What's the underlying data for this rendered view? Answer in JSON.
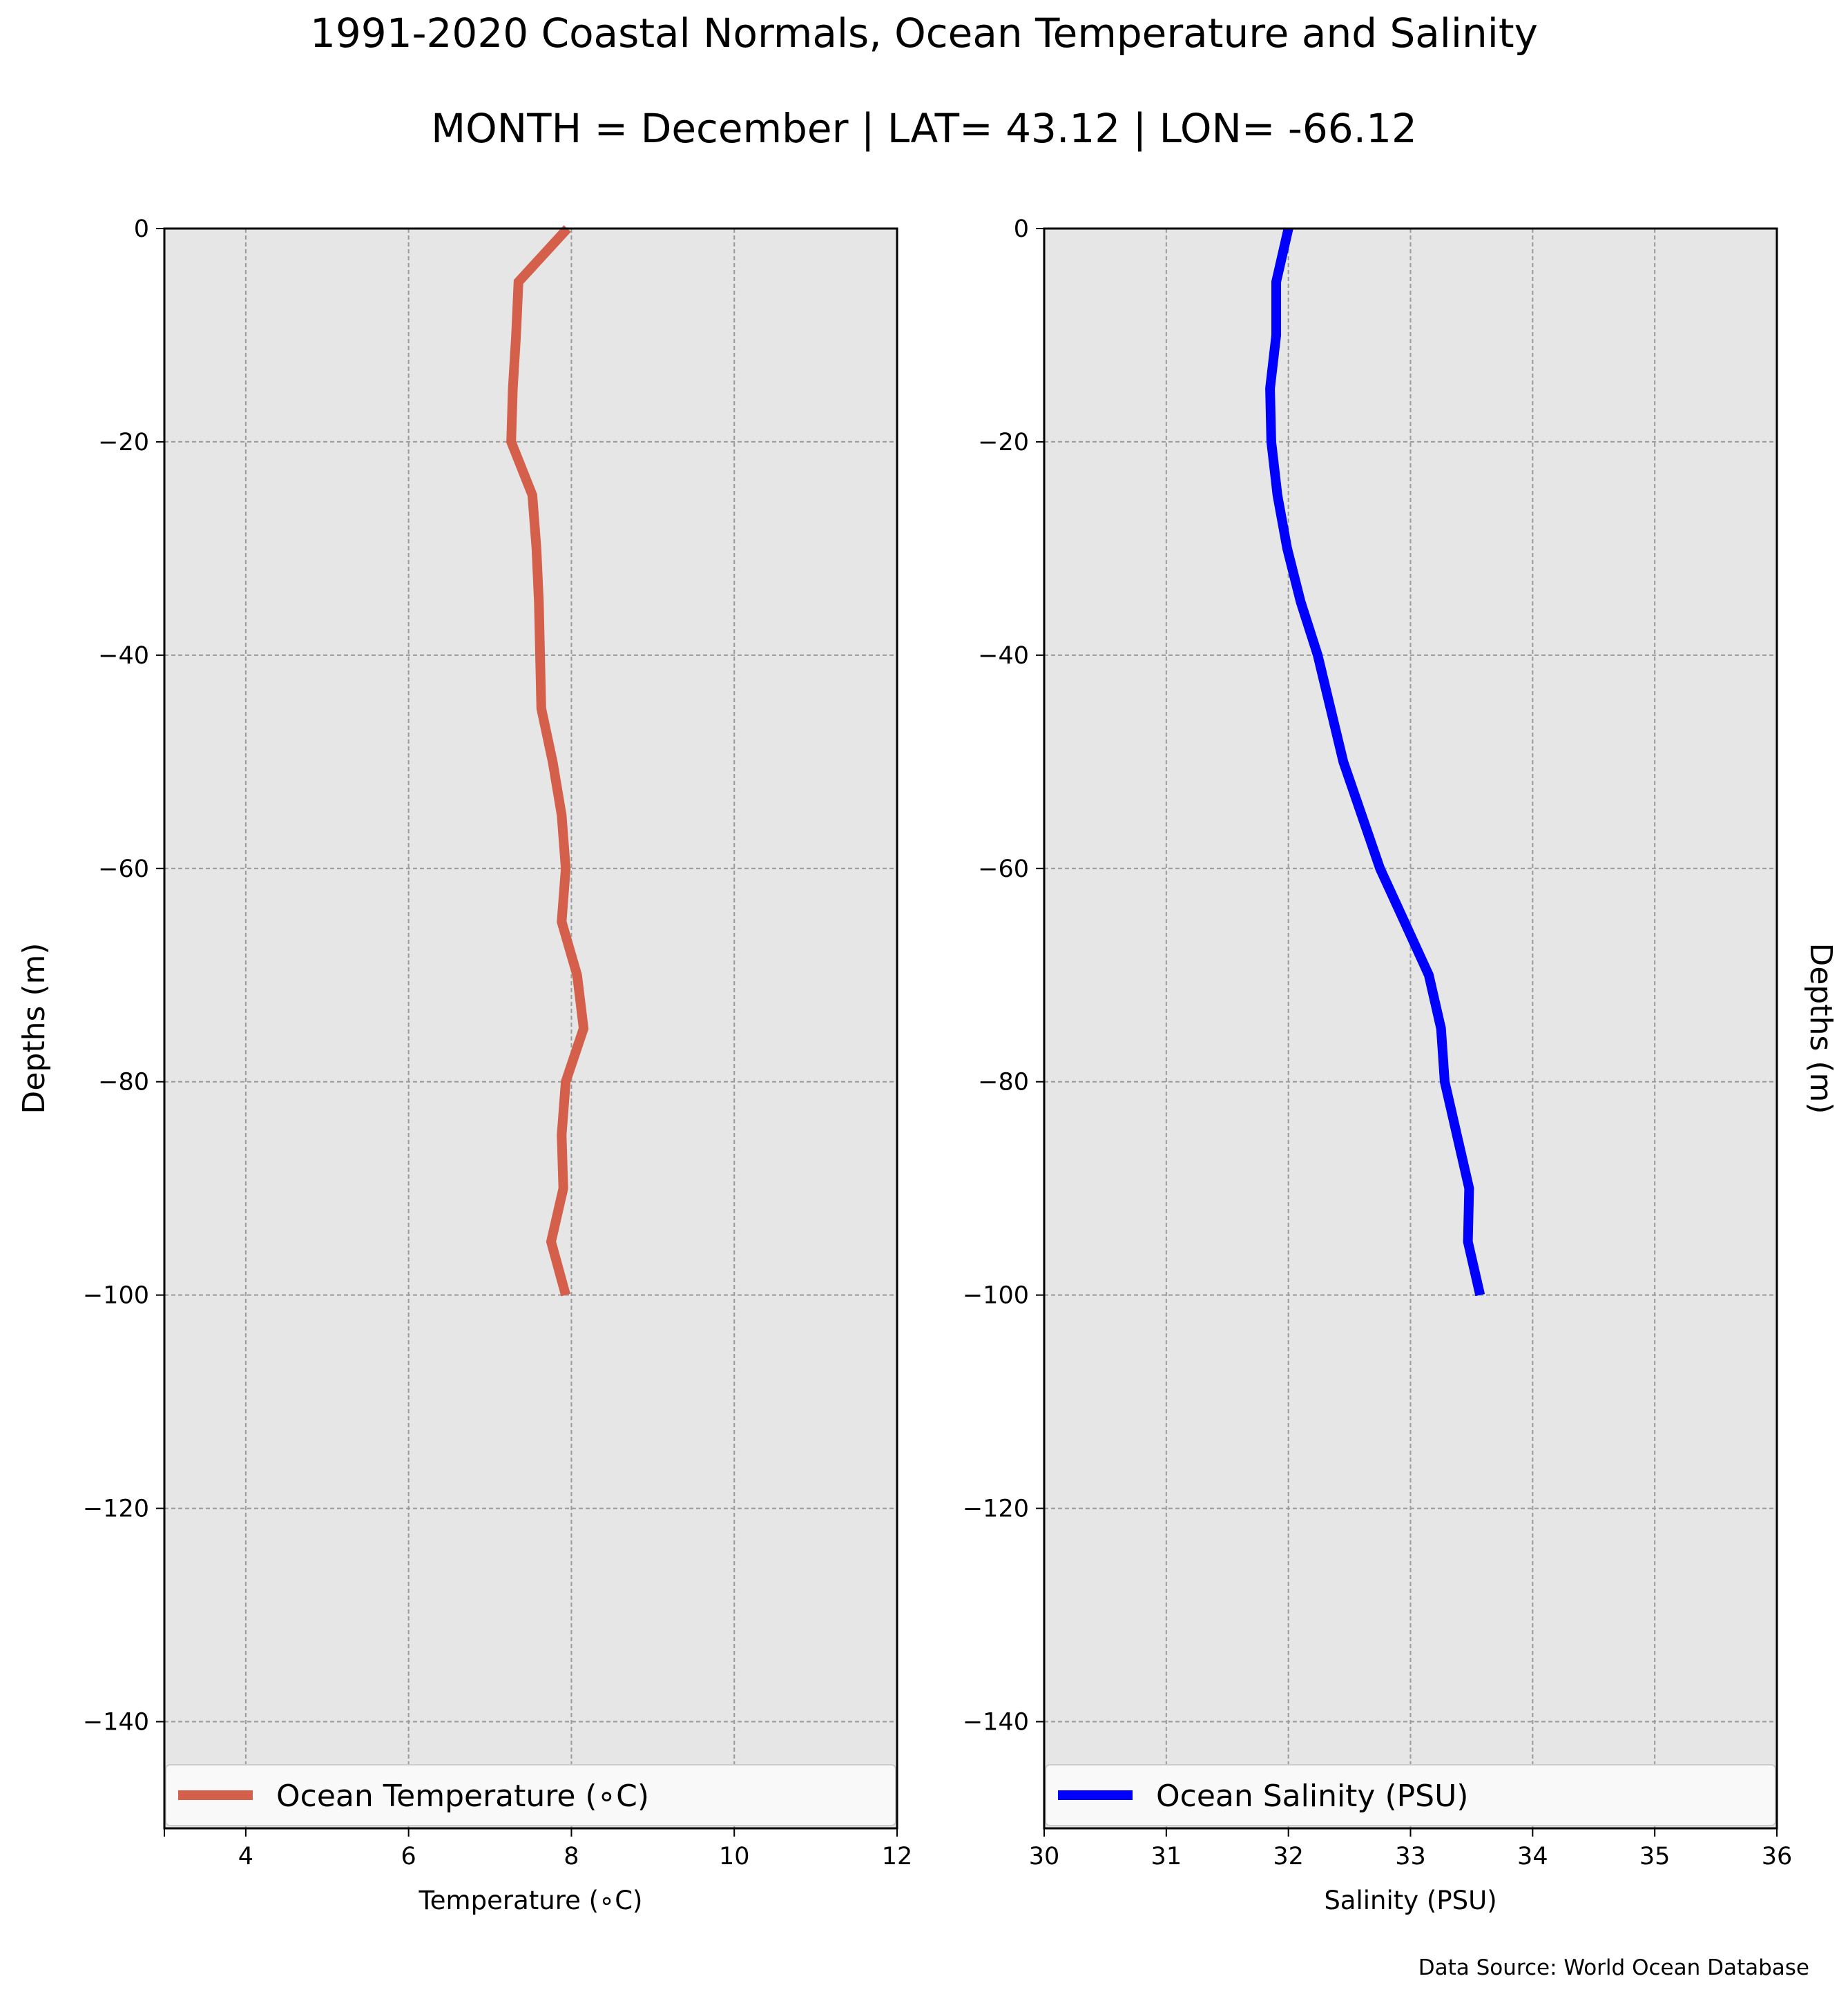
{
  "header": {
    "title": "1991-2020 Coastal Normals, Ocean Temperature and Salinity",
    "subtitle": "MONTH = December | LAT= 43.12 | LON= -66.12"
  },
  "footer": {
    "source": "Data Source: World Ocean Database"
  },
  "colors": {
    "temperature": "#d45f4a",
    "salinity": "#0000ff",
    "panel_bg": "#e6e6e6"
  },
  "chart_data": [
    {
      "type": "line",
      "xlabel": "Temperature ($^\\circ$C)",
      "xlabel_display": "Temperature (∘C)",
      "ylabel": "Depths (m)",
      "xlim": [
        3,
        12
      ],
      "ylim": [
        -150,
        0
      ],
      "xticks": [
        4,
        6,
        8,
        10,
        12
      ],
      "yticks": [
        0,
        -20,
        -40,
        -60,
        -80,
        -100,
        -120,
        -140
      ],
      "grid": true,
      "legend": "bottom",
      "series": [
        {
          "name": "Ocean Temperature (∘C)",
          "x": [
            7.95,
            7.35,
            7.32,
            7.28,
            7.26,
            7.52,
            7.57,
            7.6,
            7.63,
            7.77,
            7.88,
            7.93,
            7.88,
            8.07,
            8.15,
            7.93,
            7.88,
            7.9,
            7.75,
            7.93
          ],
          "y": [
            0,
            -5,
            -10,
            -15,
            -20,
            -25,
            -30,
            -35,
            -45,
            -50,
            -55,
            -60,
            -65,
            -70,
            -75,
            -80,
            -85,
            -90,
            -95,
            -100
          ]
        }
      ]
    },
    {
      "type": "line",
      "xlabel": "Salinity (PSU)",
      "ylabel": "Depths (m)",
      "xlim": [
        30,
        36
      ],
      "ylim": [
        -150,
        0
      ],
      "xticks": [
        30,
        31,
        32,
        33,
        34,
        35,
        36
      ],
      "yticks": [
        0,
        -20,
        -40,
        -60,
        -80,
        -100,
        -120,
        -140
      ],
      "grid": true,
      "legend": "bottom",
      "series": [
        {
          "name": "Ocean Salinity (PSU)",
          "x": [
            32.0,
            31.9,
            31.9,
            31.85,
            31.86,
            31.91,
            31.99,
            32.1,
            32.24,
            32.45,
            32.6,
            32.75,
            32.95,
            33.15,
            33.25,
            33.28,
            33.38,
            33.48,
            33.47,
            33.57
          ],
          "y": [
            0,
            -5,
            -10,
            -15,
            -20,
            -25,
            -30,
            -35,
            -40,
            -50,
            -55,
            -60,
            -65,
            -70,
            -75,
            -80,
            -85,
            -90,
            -95,
            -100
          ]
        }
      ]
    }
  ]
}
